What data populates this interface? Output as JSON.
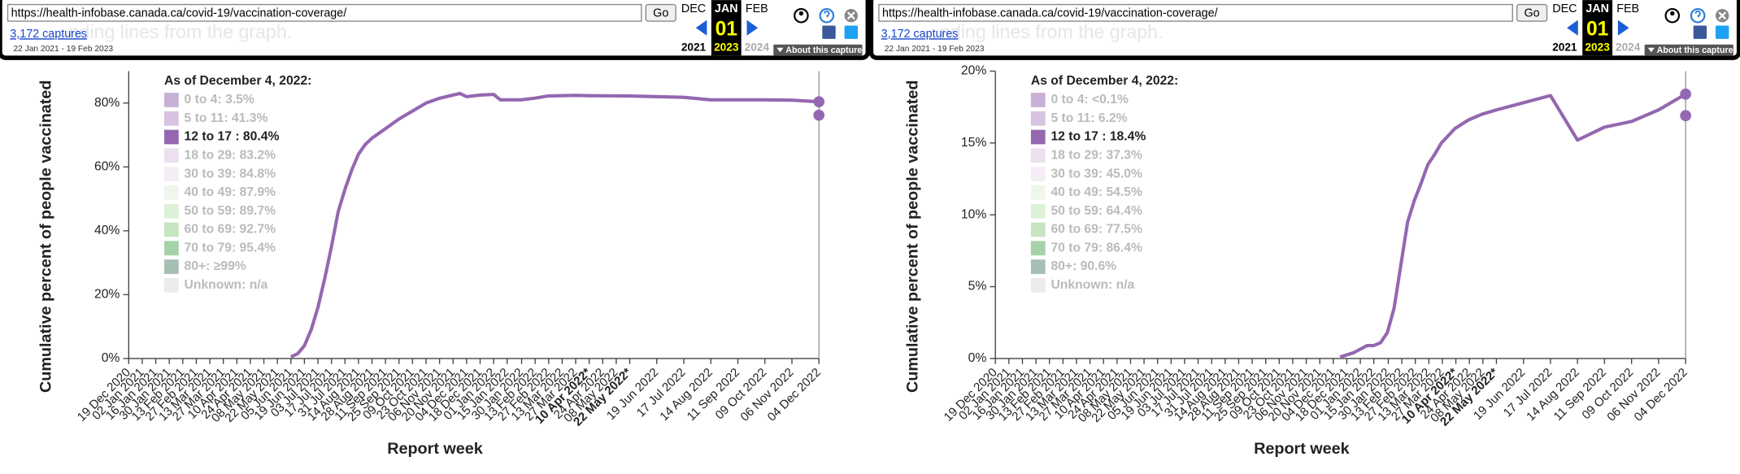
{
  "toolbars": [
    {
      "url": "https://health-infobase.canada.ca/covid-19/vaccination-coverage/",
      "go": "Go",
      "month_prev": "DEC",
      "month_cur": "JAN",
      "day": "01",
      "year_cur": "2023",
      "month_next": "FEB",
      "year_prev": "2021",
      "year_next": "2024",
      "captures": "3,172 captures",
      "range": "22 Jan 2021 - 19 Feb 2023",
      "about": "About this capture",
      "background_text": "nding lines from the graph."
    },
    {
      "url": "https://health-infobase.canada.ca/covid-19/vaccination-coverage/",
      "go": "Go",
      "month_prev": "DEC",
      "month_cur": "JAN",
      "day": "01",
      "year_cur": "2023",
      "month_next": "FEB",
      "year_prev": "2021",
      "year_next": "2024",
      "captures": "3,172 captures",
      "range": "22 Jan 2021 - 19 Feb 2023",
      "about": "About this capture",
      "background_text": "nding lines from the graph."
    }
  ],
  "chart_data": [
    {
      "type": "line",
      "ylabel": "Cumulative percent of people vaccinated",
      "xlabel": "Report week",
      "legend_title": "As of December 4, 2022:",
      "legend": [
        {
          "label": "0 to 4: 3.5%",
          "color": "#c7b0d5"
        },
        {
          "label": "5 to 11: 41.3%",
          "color": "#d8c3e0"
        },
        {
          "label": "12 to 17 : 80.4%",
          "color": "#9467b0"
        },
        {
          "label": "18 to 29: 83.2%",
          "color": "#ebdff0"
        },
        {
          "label": "30 to 39: 84.8%",
          "color": "#f5edf5"
        },
        {
          "label": "40 to 49: 87.9%",
          "color": "#eff6ec"
        },
        {
          "label": "50 to 59: 89.7%",
          "color": "#ddf0d8"
        },
        {
          "label": "60 to 69: 92.7%",
          "color": "#c6e5c0"
        },
        {
          "label": "70 to 79: 95.4%",
          "color": "#a5d2a6"
        },
        {
          "label": "80+: ≥99%",
          "color": "#a7bfb2"
        },
        {
          "label": "Unknown: n/a",
          "color": "#ececec"
        }
      ],
      "highlight": 2,
      "x": [
        "2021-06-05",
        "2021-06-12",
        "2021-06-19",
        "2021-06-26",
        "2021-07-03",
        "2021-07-10",
        "2021-07-17",
        "2021-07-24",
        "2021-07-31",
        "2021-08-07",
        "2021-08-14",
        "2021-08-21",
        "2021-08-28",
        "2021-09-11",
        "2021-09-25",
        "2021-10-09",
        "2021-10-23",
        "2021-11-06",
        "2021-11-20",
        "2021-11-27",
        "2021-12-04",
        "2021-12-18",
        "2022-01-01",
        "2022-01-08",
        "2022-01-29",
        "2022-02-12",
        "2022-02-26",
        "2022-03-26",
        "2022-04-10",
        "2022-05-22",
        "2022-07-17",
        "2022-08-14",
        "2022-10-09",
        "2022-11-06",
        "2022-12-04"
      ],
      "series": [
        {
          "color": "#9467b0",
          "values": [
            0.5,
            1.5,
            4,
            9,
            16,
            25,
            35,
            46,
            53,
            59,
            64,
            67,
            69,
            72,
            75,
            77.5,
            80,
            81.5,
            82.5,
            83,
            82,
            82.5,
            82.7,
            81,
            81,
            81.5,
            82.2,
            82.4,
            82.3,
            82.2,
            81.8,
            81,
            81,
            80.9,
            80.4
          ]
        }
      ],
      "end_markers": [
        80.4,
        76.2
      ],
      "xlim": [
        "2020-12-19",
        "2022-12-04"
      ],
      "ylim": [
        0,
        90
      ],
      "yticks": [
        {
          "value": 0,
          "label": "0%"
        },
        {
          "value": 20,
          "label": "20%"
        },
        {
          "value": 40,
          "label": "40%"
        },
        {
          "value": 60,
          "label": "60%"
        },
        {
          "value": 80,
          "label": "80%"
        }
      ],
      "xticks": [
        {
          "value": "2020-12-19",
          "label": "19 Dec 2020"
        },
        {
          "value": "2021-01-02",
          "label": "02 Jan 2021"
        },
        {
          "value": "2021-01-16",
          "label": "16 Jan 2021"
        },
        {
          "value": "2021-01-30",
          "label": "30 Jan 2021"
        },
        {
          "value": "2021-02-13",
          "label": "13 Feb 2021"
        },
        {
          "value": "2021-02-27",
          "label": "27 Feb 2021"
        },
        {
          "value": "2021-03-13",
          "label": "13 Mar 2021"
        },
        {
          "value": "2021-03-27",
          "label": "27 Mar 2021"
        },
        {
          "value": "2021-04-10",
          "label": "10 Apr 2021"
        },
        {
          "value": "2021-04-24",
          "label": "24 Apr 2021"
        },
        {
          "value": "2021-05-08",
          "label": "08 May 2021"
        },
        {
          "value": "2021-05-22",
          "label": "22 May 2021"
        },
        {
          "value": "2021-06-05",
          "label": "05 Jun 2021"
        },
        {
          "value": "2021-06-19",
          "label": "19 Jun 2021"
        },
        {
          "value": "2021-07-03",
          "label": "03 Jul 2021"
        },
        {
          "value": "2021-07-17",
          "label": "17 Jul 2021"
        },
        {
          "value": "2021-07-31",
          "label": "31 Jul 2021"
        },
        {
          "value": "2021-08-14",
          "label": "14 Aug 2021"
        },
        {
          "value": "2021-08-28",
          "label": "28 Aug 2021"
        },
        {
          "value": "2021-09-11",
          "label": "11 Sep 2021"
        },
        {
          "value": "2021-09-25",
          "label": "25 Sep 2021"
        },
        {
          "value": "2021-10-09",
          "label": "09 Oct 2021"
        },
        {
          "value": "2021-10-23",
          "label": "23 Oct 2021"
        },
        {
          "value": "2021-11-06",
          "label": "06 Nov 2021"
        },
        {
          "value": "2021-11-20",
          "label": "20 Nov 2021"
        },
        {
          "value": "2021-12-04",
          "label": "04 Dec 2021"
        },
        {
          "value": "2021-12-18",
          "label": "18 Dec 2021"
        },
        {
          "value": "2022-01-01",
          "label": "01 Jan 2022"
        },
        {
          "value": "2022-01-15",
          "label": "15 Jan 2022"
        },
        {
          "value": "2022-01-30",
          "label": "30 Jan 2022"
        },
        {
          "value": "2022-02-13",
          "label": "13 Feb 2022"
        },
        {
          "value": "2022-02-27",
          "label": "27 Feb 2022"
        },
        {
          "value": "2022-03-13",
          "label": "13 Mar 2022"
        },
        {
          "value": "2022-03-27",
          "label": "27 Mar 2022"
        },
        {
          "value": "2022-04-10",
          "label": "10 Apr 2022*"
        },
        {
          "value": "2022-04-24",
          "label": "24 Apr 2022"
        },
        {
          "value": "2022-05-08",
          "label": "08 May 2022"
        },
        {
          "value": "2022-05-22",
          "label": "22 May 2022*"
        },
        {
          "value": "2022-06-19",
          "label": "19 Jun 2022"
        },
        {
          "value": "2022-07-17",
          "label": "17 Jul 2022"
        },
        {
          "value": "2022-08-14",
          "label": "14 Aug 2022"
        },
        {
          "value": "2022-09-11",
          "label": "11 Sep 2022"
        },
        {
          "value": "2022-10-09",
          "label": "09 Oct 2022"
        },
        {
          "value": "2022-11-06",
          "label": "06 Nov 2022"
        },
        {
          "value": "2022-12-04",
          "label": "04 Dec 2022"
        }
      ]
    },
    {
      "type": "line",
      "ylabel": "Cumulative percent of people vaccinated",
      "xlabel": "Report week",
      "legend_title": "As of December 4, 2022:",
      "legend": [
        {
          "label": "0 to 4: <0.1%",
          "color": "#c7b0d5"
        },
        {
          "label": "5 to 11: 6.2%",
          "color": "#d8c3e0"
        },
        {
          "label": "12 to 17 : 18.4%",
          "color": "#9467b0"
        },
        {
          "label": "18 to 29: 37.3%",
          "color": "#ebdff0"
        },
        {
          "label": "30 to 39: 45.0%",
          "color": "#f5edf5"
        },
        {
          "label": "40 to 49: 54.5%",
          "color": "#eff6ec"
        },
        {
          "label": "50 to 59: 64.4%",
          "color": "#ddf0d8"
        },
        {
          "label": "60 to 69: 77.5%",
          "color": "#c6e5c0"
        },
        {
          "label": "70 to 79: 86.4%",
          "color": "#a5d2a6"
        },
        {
          "label": "80+: 90.6%",
          "color": "#a7bfb2"
        },
        {
          "label": "Unknown: n/a",
          "color": "#ececec"
        }
      ],
      "highlight": 2,
      "x": [
        "2021-12-11",
        "2021-12-25",
        "2022-01-08",
        "2022-01-15",
        "2022-01-22",
        "2022-01-29",
        "2022-02-05",
        "2022-02-12",
        "2022-02-19",
        "2022-02-26",
        "2022-03-05",
        "2022-03-12",
        "2022-03-19",
        "2022-03-26",
        "2022-04-02",
        "2022-04-09",
        "2022-04-23",
        "2022-05-07",
        "2022-05-22",
        "2022-06-19",
        "2022-07-17",
        "2022-08-14",
        "2022-09-11",
        "2022-10-09",
        "2022-11-06",
        "2022-12-04"
      ],
      "series": [
        {
          "color": "#9467b0",
          "values": [
            0.1,
            0.4,
            0.9,
            0.9,
            1.1,
            1.8,
            3.5,
            6.5,
            9.5,
            11,
            12.2,
            13.5,
            14.2,
            15,
            15.5,
            16,
            16.6,
            17,
            17.3,
            17.8,
            18.3,
            15.2,
            16.1,
            16.5,
            17.3,
            18.4
          ]
        }
      ],
      "end_markers": [
        18.4,
        16.9
      ],
      "xlim": [
        "2020-12-19",
        "2022-12-04"
      ],
      "ylim": [
        0,
        20
      ],
      "yticks": [
        {
          "value": 0,
          "label": "0%"
        },
        {
          "value": 5,
          "label": "5%"
        },
        {
          "value": 10,
          "label": "10%"
        },
        {
          "value": 15,
          "label": "15%"
        },
        {
          "value": 20,
          "label": "20%"
        }
      ],
      "xticks": [
        {
          "value": "2020-12-19",
          "label": "19 Dec 2020"
        },
        {
          "value": "2021-01-02",
          "label": "02 Jan 2021"
        },
        {
          "value": "2021-01-16",
          "label": "16 Jan 2021"
        },
        {
          "value": "2021-01-30",
          "label": "30 Jan 2021"
        },
        {
          "value": "2021-02-13",
          "label": "13 Feb 2021"
        },
        {
          "value": "2021-02-27",
          "label": "27 Feb 2021"
        },
        {
          "value": "2021-03-13",
          "label": "13 Mar 2021"
        },
        {
          "value": "2021-03-27",
          "label": "27 Mar 2021"
        },
        {
          "value": "2021-04-10",
          "label": "10 Apr 2021"
        },
        {
          "value": "2021-04-24",
          "label": "24 Apr 2021"
        },
        {
          "value": "2021-05-08",
          "label": "08 May 2021"
        },
        {
          "value": "2021-05-22",
          "label": "22 May 2021"
        },
        {
          "value": "2021-06-05",
          "label": "05 Jun 2021"
        },
        {
          "value": "2021-06-19",
          "label": "19 Jun 2021"
        },
        {
          "value": "2021-07-03",
          "label": "03 Jul 2021"
        },
        {
          "value": "2021-07-17",
          "label": "17 Jul 2021"
        },
        {
          "value": "2021-07-31",
          "label": "31 Jul 2021"
        },
        {
          "value": "2021-08-14",
          "label": "14 Aug 2021"
        },
        {
          "value": "2021-08-28",
          "label": "28 Aug 2021"
        },
        {
          "value": "2021-09-11",
          "label": "11 Sep 2021"
        },
        {
          "value": "2021-09-25",
          "label": "25 Sep 2021"
        },
        {
          "value": "2021-10-09",
          "label": "09 Oct 2021"
        },
        {
          "value": "2021-10-23",
          "label": "23 Oct 2021"
        },
        {
          "value": "2021-11-06",
          "label": "06 Nov 2021"
        },
        {
          "value": "2021-11-20",
          "label": "20 Nov 2021"
        },
        {
          "value": "2021-12-04",
          "label": "04 Dec 2021"
        },
        {
          "value": "2021-12-18",
          "label": "18 Dec 2021"
        },
        {
          "value": "2022-01-01",
          "label": "01 Jan 2022"
        },
        {
          "value": "2022-01-15",
          "label": "15 Jan 2022"
        },
        {
          "value": "2022-01-30",
          "label": "30 Jan 2022"
        },
        {
          "value": "2022-02-13",
          "label": "13 Feb 2022"
        },
        {
          "value": "2022-02-27",
          "label": "27 Feb 2022"
        },
        {
          "value": "2022-03-13",
          "label": "13 Mar 2022"
        },
        {
          "value": "2022-03-27",
          "label": "27 Mar 2022"
        },
        {
          "value": "2022-04-10",
          "label": "10 Apr 2022*"
        },
        {
          "value": "2022-04-24",
          "label": "24 Apr 2022"
        },
        {
          "value": "2022-05-08",
          "label": "08 May 2022"
        },
        {
          "value": "2022-05-22",
          "label": "22 May 2022*"
        },
        {
          "value": "2022-06-19",
          "label": "19 Jun 2022"
        },
        {
          "value": "2022-07-17",
          "label": "17 Jul 2022"
        },
        {
          "value": "2022-08-14",
          "label": "14 Aug 2022"
        },
        {
          "value": "2022-09-11",
          "label": "11 Sep 2022"
        },
        {
          "value": "2022-10-09",
          "label": "09 Oct 2022"
        },
        {
          "value": "2022-11-06",
          "label": "06 Nov 2022"
        },
        {
          "value": "2022-12-04",
          "label": "04 Dec 2022"
        }
      ]
    }
  ]
}
